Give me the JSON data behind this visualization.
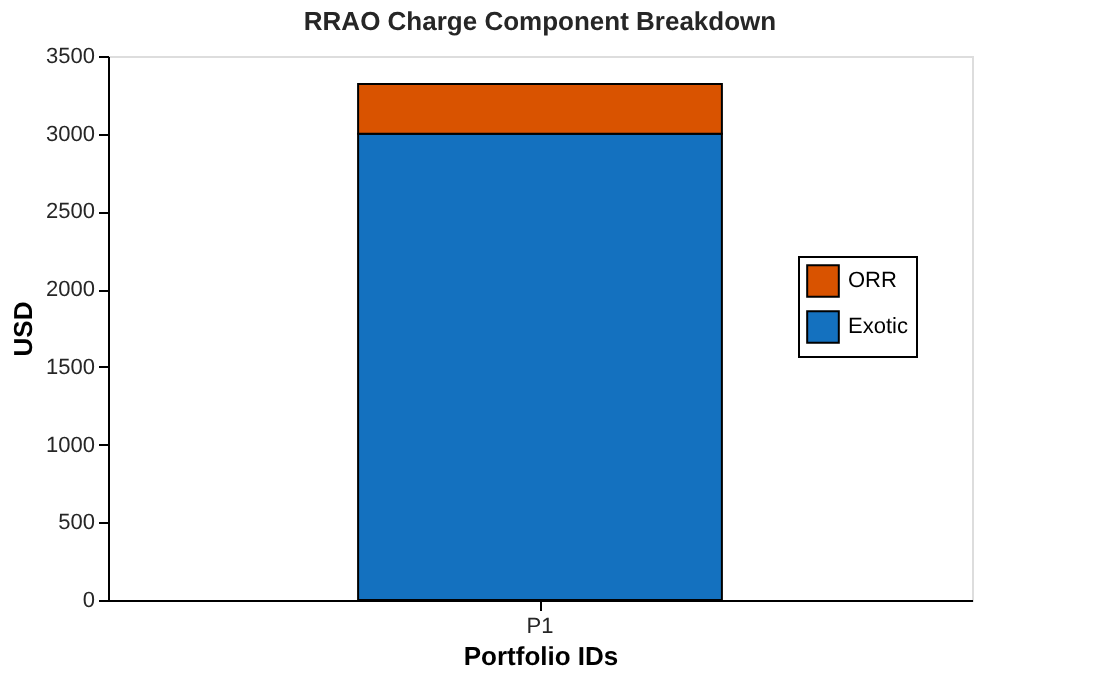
{
  "chart_data": {
    "type": "bar",
    "title": "RRAO Charge Component Breakdown",
    "xlabel": "Portfolio IDs",
    "ylabel": "USD",
    "categories": [
      "P1"
    ],
    "stacked": true,
    "series": [
      {
        "name": "Exotic",
        "color": "#1471bf",
        "values": [
          3000
        ]
      },
      {
        "name": "ORR",
        "color": "#d95300",
        "values": [
          320
        ]
      }
    ],
    "ylim": [
      0,
      3500
    ],
    "yticks": [
      0,
      500,
      1000,
      1500,
      2000,
      2500,
      3000,
      3500
    ],
    "grid": false,
    "legend": "right"
  }
}
